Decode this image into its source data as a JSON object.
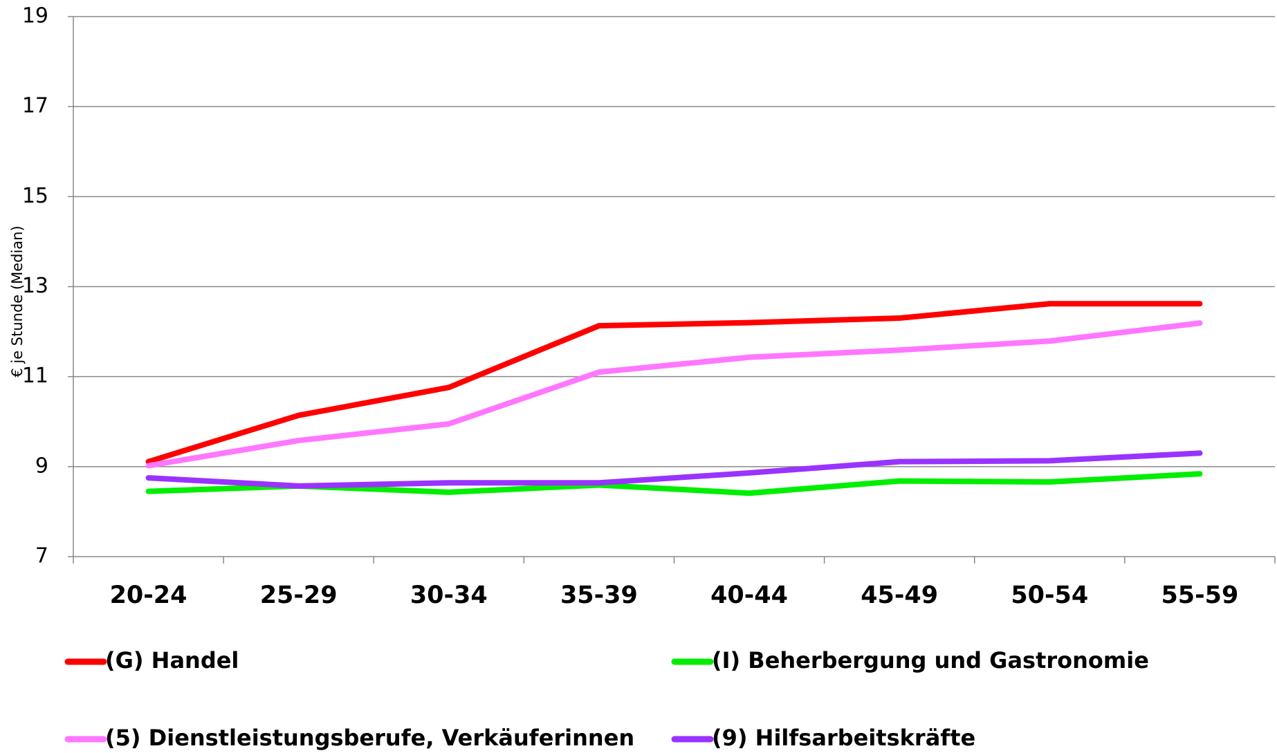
{
  "chart_data": {
    "type": "line",
    "y_label": "€ je Stunde (Median)",
    "categories": [
      "20-24",
      "25-29",
      "30-34",
      "35-39",
      "40-44",
      "45-49",
      "50-54",
      "55-59"
    ],
    "series": [
      {
        "name": "(G) Handel",
        "color": "#ff0000",
        "values": [
          9.11,
          10.14,
          10.76,
          12.13,
          12.2,
          12.3,
          12.62,
          12.62
        ]
      },
      {
        "name": "(I) Beherbergung und Gastronomie",
        "color": "#00ee00",
        "values": [
          8.45,
          8.57,
          8.43,
          8.59,
          8.41,
          8.68,
          8.66,
          8.84
        ]
      },
      {
        "name": "(5) Dienstleistungsberufe, Verkäuferinnen",
        "color": "#ff77ff",
        "values": [
          9.02,
          9.58,
          9.95,
          11.1,
          11.43,
          11.59,
          11.79,
          12.19
        ]
      },
      {
        "name": "(9) Hilfsarbeitskräfte",
        "color": "#9933ff",
        "values": [
          8.75,
          8.57,
          8.64,
          8.64,
          8.86,
          9.11,
          9.13,
          9.3
        ]
      }
    ],
    "ylim": [
      7,
      19
    ],
    "yticks": [
      7,
      9,
      11,
      13,
      15,
      17,
      19
    ],
    "grid": true
  }
}
